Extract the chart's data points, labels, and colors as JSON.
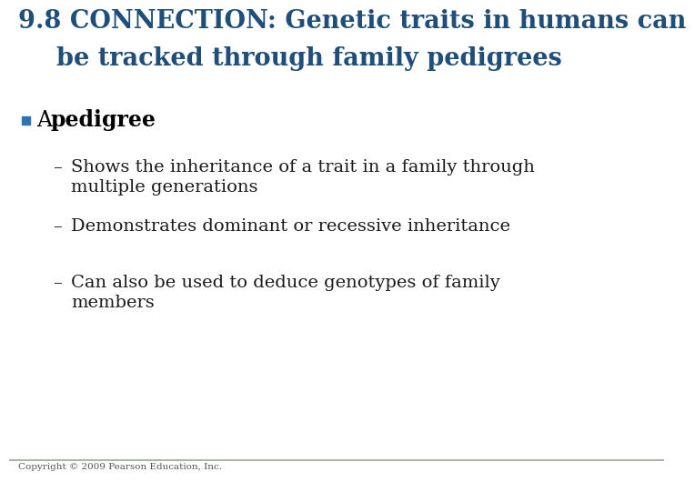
{
  "title_line1": "9.8 CONNECTION: Genetic traits in humans can",
  "title_line2": "be tracked through family pedigrees",
  "title_color": "#1F4E79",
  "title_fontsize": 19.5,
  "separator_color": "#9BA89B",
  "bullet_color": "#2E74B5",
  "bullet_fontsize": 17,
  "sub_bullet_fontsize": 14,
  "sub_bullet_color": "#1a1a1a",
  "background_color": "#FFFFFF",
  "footer_text": "Copyright © 2009 Pearson Education, Inc.",
  "footer_color": "#555555",
  "footer_fontsize": 7.5,
  "bottom_line_color": "#9BA89B",
  "title_bg_color": "#FFFFFF"
}
